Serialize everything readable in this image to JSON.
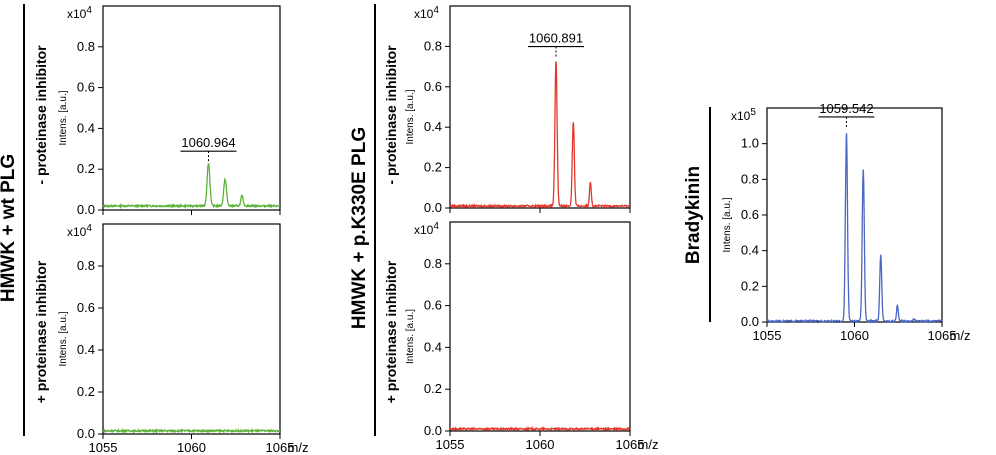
{
  "groups": [
    {
      "label": "HMWK + wt PLG"
    },
    {
      "label": "HMWK + p.K330E PLG"
    },
    {
      "label": "Bradykinin"
    }
  ],
  "conditions": {
    "minus": "- proteinase inhibitor",
    "plus": "+ proteinase inhibitor"
  },
  "colors": {
    "wt": "#5db33a",
    "k330e": "#e4352a",
    "bradykinin": "#4a67c4"
  },
  "chart_data": [
    {
      "type": "line",
      "panel": "wt-minus",
      "multiplier": "x10",
      "exponent": "4",
      "ylabel": "Intens. [a.u.]",
      "xlabel": "m/z",
      "xlim": [
        1055,
        1065
      ],
      "ylim": [
        0,
        1.0
      ],
      "yticks": [
        "0.0",
        "0.2",
        "0.4",
        "0.6",
        "0.8"
      ],
      "ytick_values": [
        0,
        0.2,
        0.4,
        0.6,
        0.8
      ],
      "xticks": [
        "1055",
        "1060",
        "1065"
      ],
      "xtick_values": [
        1055,
        1060,
        1065
      ],
      "peak_label": "1060.964",
      "peak_x": 1060.96,
      "color": "#5db33a",
      "baseline": 0.02,
      "peaks": [
        [
          1060.96,
          0.21,
          0.11
        ],
        [
          1061.9,
          0.13,
          0.11
        ],
        [
          1062.85,
          0.05,
          0.09
        ]
      ]
    },
    {
      "type": "line",
      "panel": "wt-plus",
      "multiplier": "x10",
      "exponent": "4",
      "ylabel": "Intens. [a.u.]",
      "xlabel": "m/z",
      "xlim": [
        1055,
        1065
      ],
      "ylim": [
        0,
        1.0
      ],
      "yticks": [
        "0.0",
        "0.2",
        "0.4",
        "0.6",
        "0.8"
      ],
      "ytick_values": [
        0,
        0.2,
        0.4,
        0.6,
        0.8
      ],
      "xticks": [
        "1055",
        "1060",
        "1065"
      ],
      "xtick_values": [
        1055,
        1060,
        1065
      ],
      "color": "#5db33a",
      "baseline": 0.015,
      "peaks": []
    },
    {
      "type": "line",
      "panel": "k330e-minus",
      "multiplier": "x10",
      "exponent": "4",
      "ylabel": "Intens. [a.u.]",
      "xlabel": "m/z",
      "xlim": [
        1055,
        1065
      ],
      "ylim": [
        0,
        1.0
      ],
      "yticks": [
        "0.0",
        "0.2",
        "0.4",
        "0.6",
        "0.8"
      ],
      "ytick_values": [
        0,
        0.2,
        0.4,
        0.6,
        0.8
      ],
      "xticks": [
        "1055",
        "1060",
        "1065"
      ],
      "xtick_values": [
        1055,
        1060,
        1065
      ],
      "peak_label": "1060.891",
      "peak_x": 1060.89,
      "color": "#e4352a",
      "baseline": 0.01,
      "peaks": [
        [
          1060.89,
          0.72,
          0.085
        ],
        [
          1061.85,
          0.42,
          0.08
        ],
        [
          1062.8,
          0.12,
          0.07
        ]
      ]
    },
    {
      "type": "line",
      "panel": "k330e-plus",
      "multiplier": "x10",
      "exponent": "4",
      "ylabel": "Intens. [a.u.]",
      "xlabel": "m/z",
      "xlim": [
        1055,
        1065
      ],
      "ylim": [
        0,
        1.0
      ],
      "yticks": [
        "0.0",
        "0.2",
        "0.4",
        "0.6",
        "0.8"
      ],
      "ytick_values": [
        0,
        0.2,
        0.4,
        0.6,
        0.8
      ],
      "xticks": [
        "1055",
        "1060",
        "1065"
      ],
      "xtick_values": [
        1055,
        1060,
        1065
      ],
      "color": "#e4352a",
      "baseline": 0.01,
      "peaks": []
    },
    {
      "type": "line",
      "panel": "bradykinin",
      "multiplier": "x10",
      "exponent": "5",
      "ylabel": "Intens. [a.u.]",
      "xlabel": "m/z",
      "xlim": [
        1055,
        1065
      ],
      "ylim": [
        0,
        1.2
      ],
      "yticks": [
        "0.0",
        "0.2",
        "0.4",
        "0.6",
        "0.8",
        "1.0"
      ],
      "ytick_values": [
        0,
        0.2,
        0.4,
        0.6,
        0.8,
        1.0
      ],
      "xticks": [
        "1055",
        "1060",
        "1065"
      ],
      "xtick_values": [
        1055,
        1060,
        1065
      ],
      "peak_label": "1059.542",
      "peak_x": 1059.54,
      "color": "#4a67c4",
      "baseline": 0.005,
      "peaks": [
        [
          1059.54,
          1.06,
          0.085
        ],
        [
          1060.5,
          0.85,
          0.085
        ],
        [
          1061.5,
          0.37,
          0.08
        ],
        [
          1062.45,
          0.09,
          0.07
        ],
        [
          1063.4,
          0.015,
          0.06
        ]
      ]
    }
  ]
}
